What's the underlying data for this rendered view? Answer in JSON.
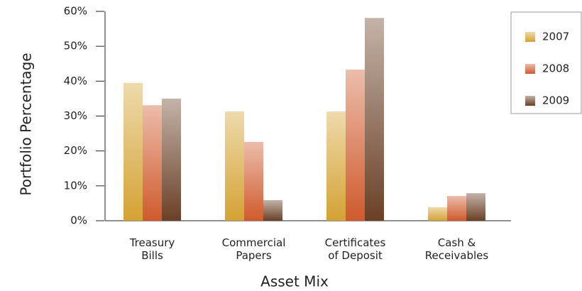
{
  "chart_data": {
    "type": "bar",
    "x_label": "Asset Mix",
    "y_label": "Portfolio Percentage",
    "categories": [
      "Treasury\nBills",
      "Commercial\nPapers",
      "Certificates\nof Deposit",
      "Cash &\nReceivables"
    ],
    "series": [
      {
        "name": "2007",
        "color": "#d4a233",
        "values": [
          39.5,
          31.3,
          31.3,
          3.9
        ]
      },
      {
        "name": "2008",
        "color": "#cf5a2c",
        "values": [
          33.1,
          22.6,
          43.3,
          7.1
        ]
      },
      {
        "name": "2009",
        "color": "#6a4026",
        "values": [
          35.0,
          5.9,
          58.1,
          7.9
        ]
      }
    ],
    "ylim": [
      0,
      60
    ],
    "yticks": [
      {
        "value": 0,
        "label": "0%"
      },
      {
        "value": 10,
        "label": "10%"
      },
      {
        "value": 20,
        "label": "20%"
      },
      {
        "value": 30,
        "label": "30%"
      },
      {
        "value": 40,
        "label": "40%"
      },
      {
        "value": 50,
        "label": "50%"
      },
      {
        "value": 60,
        "label": "60%"
      }
    ],
    "legend": "upper right"
  }
}
